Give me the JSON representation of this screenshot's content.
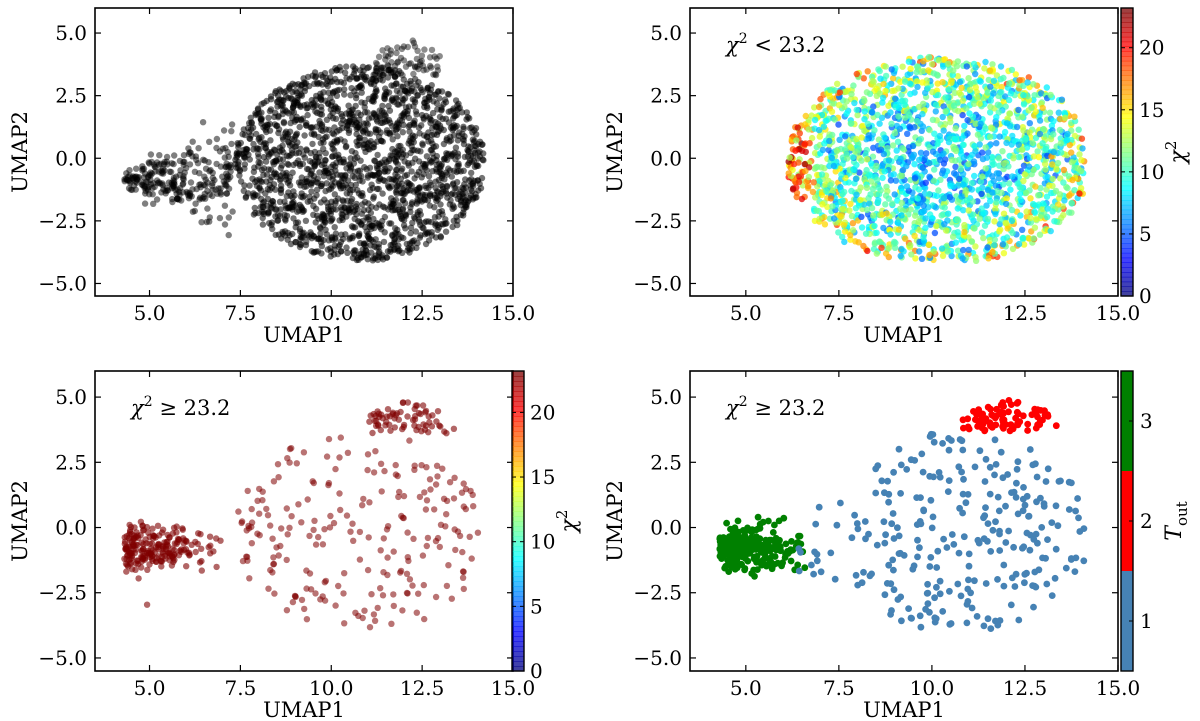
{
  "figure": {
    "layout": "2x2 grid of UMAP scatter panels",
    "colors": {
      "all_points": "#000000",
      "high_chi2_points": "#7f0000",
      "group_1": "#4682b4",
      "group_2": "#ff0000",
      "group_3": "#008000"
    }
  },
  "chart_data": [
    {
      "id": "top-left",
      "type": "scatter",
      "title": "",
      "xlabel": "UMAP1",
      "ylabel": "UMAP2",
      "xlim": [
        3.5,
        15.0
      ],
      "ylim": [
        -5.5,
        6.0
      ],
      "xticks": [
        "5.0",
        "7.5",
        "10.0",
        "12.5",
        "15.0"
      ],
      "yticks": [
        "5.0",
        "2.5",
        "0.0",
        "−2.5",
        "−5.0"
      ],
      "annotation": "",
      "points": "dense black cloud: tail at UMAP1≈4.5, UMAP2≈-0.9, main ellipse centered near (10.8,-0.3) spanning UMAP1 6.8–14.2 and UMAP2 -4.1–4.8",
      "color": "#000000"
    },
    {
      "id": "top-right",
      "type": "scatter",
      "title": "",
      "xlabel": "UMAP1",
      "ylabel": "UMAP2",
      "xlim": [
        3.5,
        15.0
      ],
      "ylim": [
        -5.5,
        6.0
      ],
      "xticks": [
        "5.0",
        "7.5",
        "10.0",
        "12.5",
        "15.0"
      ],
      "yticks": [
        "5.0",
        "2.5",
        "0.0",
        "−2.5",
        "−5.0"
      ],
      "annotation_prefix": "χ",
      "annotation_sup": "2",
      "annotation_rest": " < 23.2",
      "colorbar": {
        "label": "χ",
        "label_sup": "2",
        "range": [
          0,
          23.2
        ],
        "ticks": [
          "20",
          "15",
          "10",
          "5",
          "0"
        ],
        "colormap": "jet"
      },
      "points": "ellipse centered near (10.3,-0.2) spanning UMAP1 6.0–14.1, UMAP2 -4.1–4.2, colored by chi2 (mostly 5–12)"
    },
    {
      "id": "bottom-left",
      "type": "scatter",
      "title": "",
      "xlabel": "UMAP1",
      "ylabel": "UMAP2",
      "xlim": [
        3.5,
        15.0
      ],
      "ylim": [
        -5.5,
        6.0
      ],
      "xticks": [
        "5.0",
        "7.5",
        "10.0",
        "12.5",
        "15.0"
      ],
      "yticks": [
        "5.0",
        "2.5",
        "0.0",
        "−2.5",
        "−5.0"
      ],
      "annotation_prefix": "χ",
      "annotation_sup": "2",
      "annotation_rest": " ≥ 23.2",
      "colorbar": {
        "label": "χ",
        "label_sup": "2",
        "range": [
          0,
          23.2
        ],
        "ticks": [
          "20",
          "15",
          "10",
          "5",
          "0"
        ],
        "colormap": "jet"
      },
      "color": "#7f0000"
    },
    {
      "id": "bottom-right",
      "type": "scatter",
      "title": "",
      "xlabel": "UMAP1",
      "ylabel": "UMAP2",
      "xlim": [
        3.5,
        15.0
      ],
      "ylim": [
        -5.5,
        6.0
      ],
      "xticks": [
        "5.0",
        "7.5",
        "10.0",
        "12.5",
        "15.0"
      ],
      "yticks": [
        "5.0",
        "2.5",
        "0.0",
        "−2.5",
        "−5.0"
      ],
      "annotation_prefix": "χ",
      "annotation_sup": "2",
      "annotation_rest": " ≥ 23.2",
      "colorbar": {
        "label": "T",
        "label_sub": "out",
        "type": "categorical",
        "categories": [
          "1",
          "2",
          "3"
        ],
        "colors": [
          "#4682b4",
          "#ff0000",
          "#008000"
        ]
      }
    }
  ],
  "clusters": [
    {
      "name": "tail",
      "cx": 5.4,
      "cy": -0.9,
      "sx": 0.55,
      "sy": 0.45
    },
    {
      "name": "top",
      "cx": 12.0,
      "cy": 4.2,
      "sx": 0.55,
      "sy": 0.35
    }
  ]
}
